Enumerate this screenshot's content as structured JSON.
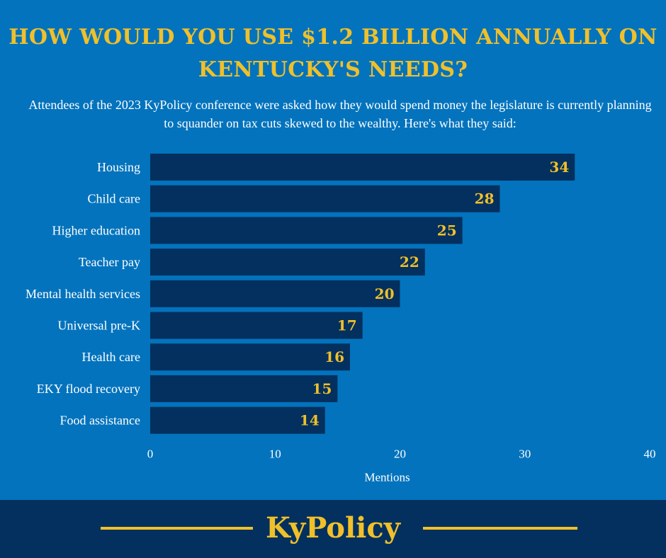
{
  "header": {
    "title": "HOW WOULD YOU USE $1.2 BILLION ANNUALLY ON KENTUCKY'S NEEDS?",
    "subtitle": "Attendees of the 2023 KyPolicy conference were asked how they would spend money the legislature is currently planning to squander on tax cuts skewed to the wealthy. Here's what they said:"
  },
  "footer": {
    "brand": "KyPolicy"
  },
  "colors": {
    "background": "#0373bd",
    "bar": "#03305e",
    "accent": "#f0c02a",
    "text": "#ffffff"
  },
  "chart_data": {
    "type": "bar",
    "orientation": "horizontal",
    "categories": [
      "Housing",
      "Child care",
      "Higher education",
      "Teacher pay",
      "Mental health services",
      "Universal pre-K",
      "Health care",
      "EKY flood recovery",
      "Food assistance"
    ],
    "values": [
      34,
      28,
      25,
      22,
      20,
      17,
      16,
      15,
      14
    ],
    "xlabel": "Mentions",
    "ylabel": "",
    "xlim": [
      0,
      40
    ],
    "xticks": [
      0,
      10,
      20,
      30,
      40
    ],
    "grid": false,
    "data_labels": true
  }
}
